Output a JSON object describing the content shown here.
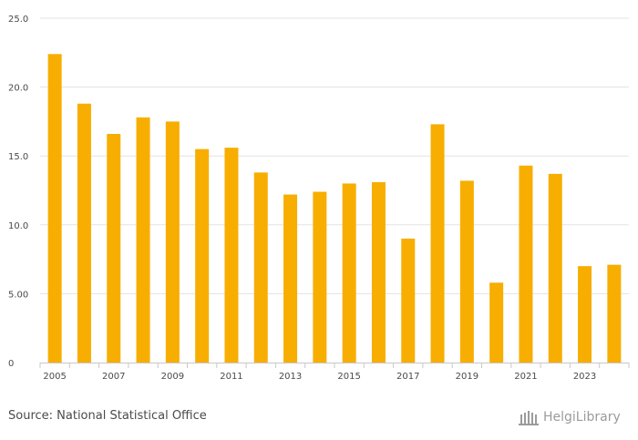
{
  "chart_data": {
    "type": "bar",
    "title": "",
    "xlabel": "",
    "ylabel": "",
    "categories": [
      "2005",
      "2006",
      "2007",
      "2008",
      "2009",
      "2010",
      "2011",
      "2012",
      "2013",
      "2014",
      "2015",
      "2016",
      "2017",
      "2018",
      "2019",
      "2020",
      "2021",
      "2022",
      "2023",
      "2024"
    ],
    "values": [
      22.4,
      18.8,
      16.6,
      17.8,
      17.5,
      15.5,
      15.6,
      13.8,
      12.2,
      12.4,
      13.0,
      13.1,
      9.0,
      17.3,
      13.2,
      5.8,
      14.3,
      13.7,
      7.0,
      7.1
    ],
    "x_tick_labels": [
      "2005",
      "2007",
      "2009",
      "2011",
      "2013",
      "2015",
      "2017",
      "2019",
      "2021",
      "2023"
    ],
    "y_ticks": [
      0,
      5,
      10,
      15,
      20,
      25
    ],
    "y_tick_labels": [
      "0",
      "5.00",
      "10.0",
      "15.0",
      "20.0",
      "25.0"
    ],
    "ylim": [
      0,
      25
    ],
    "grid": true,
    "bar_color": "#f7ae00"
  },
  "footer": {
    "source": "Source: National Statistical Office"
  },
  "logo": {
    "text": "HelgiLibrary",
    "color": "#9b9b9b"
  }
}
